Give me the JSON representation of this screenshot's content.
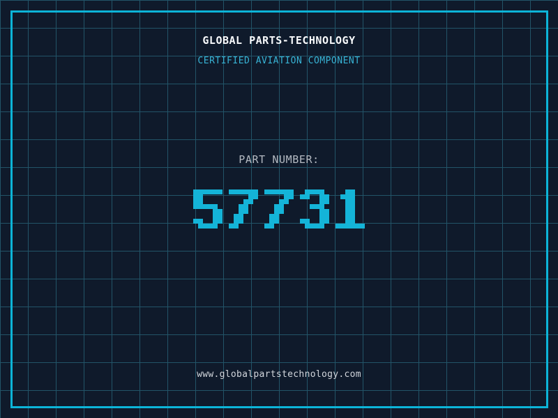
{
  "header": {
    "title": "GLOBAL PARTS-TECHNOLOGY",
    "subtitle": "CERTIFIED AVIATION COMPONENT"
  },
  "part": {
    "label": "PART NUMBER:",
    "number": "57731"
  },
  "footer": {
    "url": "www.globalpartstechnology.com"
  },
  "colors": {
    "background": "#0f1a2b",
    "grid_line": "#225468",
    "frame_border": "#0cb4d8",
    "title_text": "#f7f9fb",
    "subtitle_text": "#38b4d6",
    "label_text": "#b4bac2",
    "number_text": "#14b4d8",
    "url_text": "#d2d6dc"
  }
}
